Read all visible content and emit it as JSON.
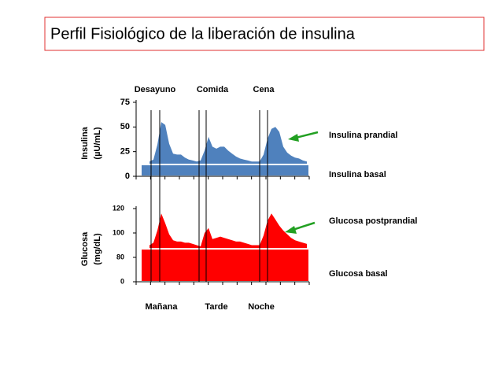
{
  "title": "Perfil Fisiológico de la liberación de insulina",
  "meals": [
    "Desayuno",
    "Comida",
    "Cena"
  ],
  "periods": [
    "Mañana",
    "Tarde",
    "Noche"
  ],
  "chart_data": [
    {
      "type": "area",
      "ylabel": "Insulina",
      "yunit": "(µU/mL)",
      "scale": "linear",
      "ylim": [
        0,
        75
      ],
      "yticks": [
        0,
        25,
        50,
        75
      ],
      "series": [
        {
          "name": "Insulina prandial",
          "color": "#4f81bd",
          "values": [
            15,
            17,
            32,
            55,
            52,
            33,
            23,
            22,
            22,
            19,
            17,
            16,
            15,
            16,
            26,
            40,
            30,
            28,
            30,
            30,
            26,
            23,
            20,
            18,
            17,
            16,
            15,
            15,
            15,
            22,
            38,
            48,
            50,
            45,
            30,
            24,
            21,
            19,
            18,
            16,
            15
          ]
        },
        {
          "name": "Insulina basal",
          "color": "#4f81bd",
          "values": [
            12
          ]
        }
      ]
    },
    {
      "type": "area",
      "ylabel": "Glucosa",
      "yunit": "(mg/dL)",
      "scale": "broken",
      "ylim": [
        0,
        120
      ],
      "yticks": [
        0,
        80,
        100,
        120
      ],
      "series": [
        {
          "name": "Glucosa postprandial",
          "color": "#ff0000",
          "values": [
            90,
            92,
            102,
            116,
            108,
            99,
            94,
            93,
            93,
            92,
            92,
            91,
            90,
            89,
            100,
            104,
            95,
            96,
            97,
            96,
            95,
            94,
            93,
            93,
            92,
            91,
            90,
            90,
            90,
            98,
            110,
            116,
            111,
            106,
            102,
            99,
            96,
            94,
            93,
            92,
            91
          ]
        },
        {
          "name": "Glucosa basal",
          "color": "#ff0000",
          "values": [
            87
          ]
        }
      ]
    }
  ]
}
